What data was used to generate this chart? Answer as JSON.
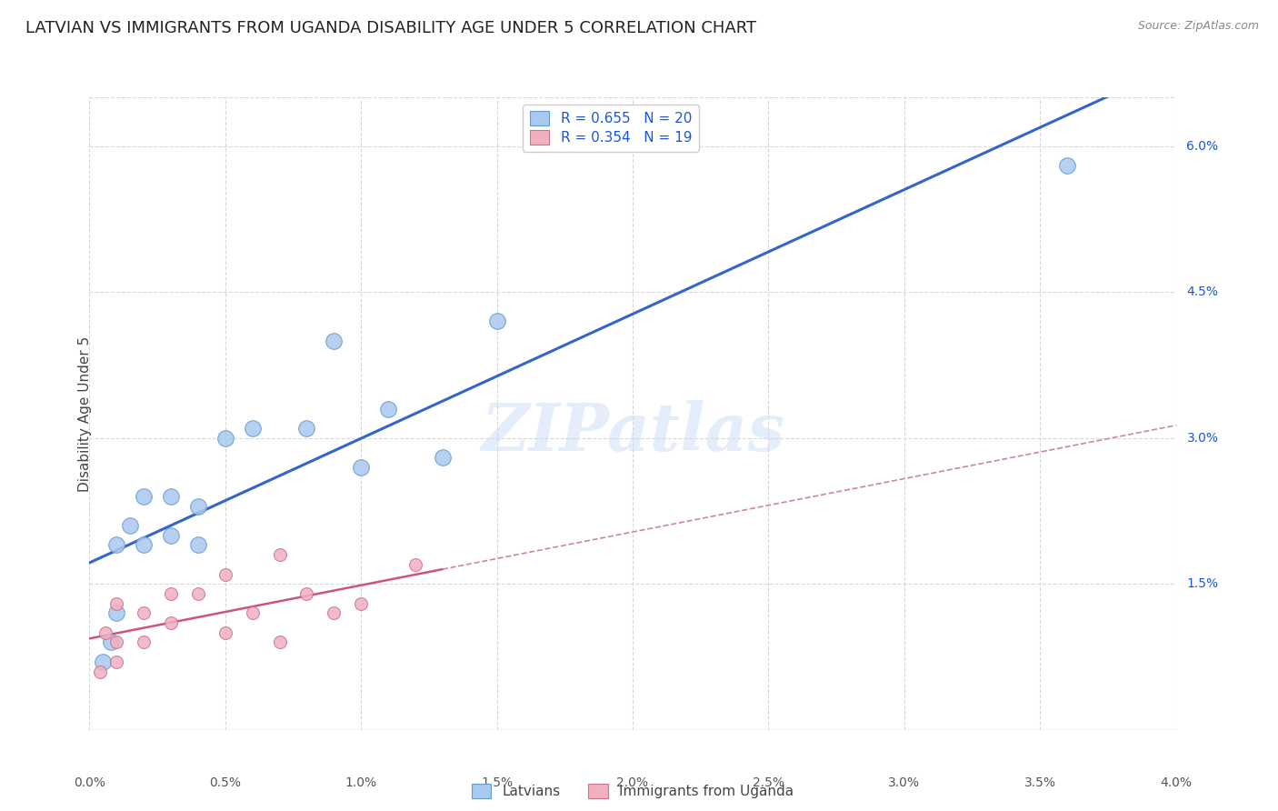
{
  "title": "LATVIAN VS IMMIGRANTS FROM UGANDA DISABILITY AGE UNDER 5 CORRELATION CHART",
  "source": "Source: ZipAtlas.com",
  "ylabel": "Disability Age Under 5",
  "xlim": [
    0.0,
    0.04
  ],
  "ylim": [
    0.0,
    0.065
  ],
  "xtick_positions": [
    0.0,
    0.005,
    0.01,
    0.015,
    0.02,
    0.025,
    0.03,
    0.035,
    0.04
  ],
  "xtick_labels": [
    "0.0%",
    "0.5%",
    "1.0%",
    "1.5%",
    "2.0%",
    "2.5%",
    "3.0%",
    "3.5%",
    "4.0%"
  ],
  "ytick_positions": [
    0.015,
    0.03,
    0.045,
    0.06
  ],
  "ytick_labels": [
    "1.5%",
    "3.0%",
    "4.5%",
    "6.0%"
  ],
  "grid_color": "#d8d8d8",
  "watermark_text": "ZIPatlas",
  "legend_text": [
    "R = 0.655   N = 20",
    "R = 0.354   N = 19"
  ],
  "legend_color_text": "#1a56db",
  "series1_color": "#aac8f0",
  "series1_edge": "#6699cc",
  "series2_color": "#f0b0c0",
  "series2_edge": "#cc7090",
  "trend1_color": "#3366cc",
  "trend2_color": "#cc5577",
  "trend2_dash_color": "#cc8899",
  "latvian_x": [
    0.0005,
    0.0008,
    0.001,
    0.001,
    0.0015,
    0.002,
    0.002,
    0.003,
    0.003,
    0.004,
    0.004,
    0.005,
    0.006,
    0.008,
    0.009,
    0.01,
    0.011,
    0.013,
    0.015,
    0.036
  ],
  "latvian_y": [
    0.007,
    0.009,
    0.012,
    0.019,
    0.021,
    0.019,
    0.024,
    0.02,
    0.024,
    0.019,
    0.023,
    0.03,
    0.031,
    0.031,
    0.04,
    0.027,
    0.033,
    0.028,
    0.042,
    0.058
  ],
  "uganda_x": [
    0.0004,
    0.0006,
    0.001,
    0.001,
    0.001,
    0.002,
    0.002,
    0.003,
    0.003,
    0.004,
    0.005,
    0.005,
    0.006,
    0.007,
    0.007,
    0.008,
    0.009,
    0.01,
    0.012
  ],
  "uganda_y": [
    0.006,
    0.01,
    0.007,
    0.009,
    0.013,
    0.009,
    0.012,
    0.011,
    0.014,
    0.014,
    0.01,
    0.016,
    0.012,
    0.009,
    0.018,
    0.014,
    0.012,
    0.013,
    0.017
  ],
  "trend1_xrange": [
    0.0,
    0.04
  ],
  "trend2_solid_xrange": [
    0.0,
    0.013
  ],
  "trend2_dash_xrange": [
    0.013,
    0.04
  ],
  "background_color": "#ffffff",
  "title_fontsize": 13,
  "axis_label_fontsize": 11,
  "tick_fontsize": 10,
  "legend_fontsize": 11,
  "watermark_fontsize": 52,
  "watermark_color": "#c5d8f5",
  "watermark_alpha": 0.45,
  "bottom_legend": [
    "Latvians",
    "Immigrants from Uganda"
  ]
}
